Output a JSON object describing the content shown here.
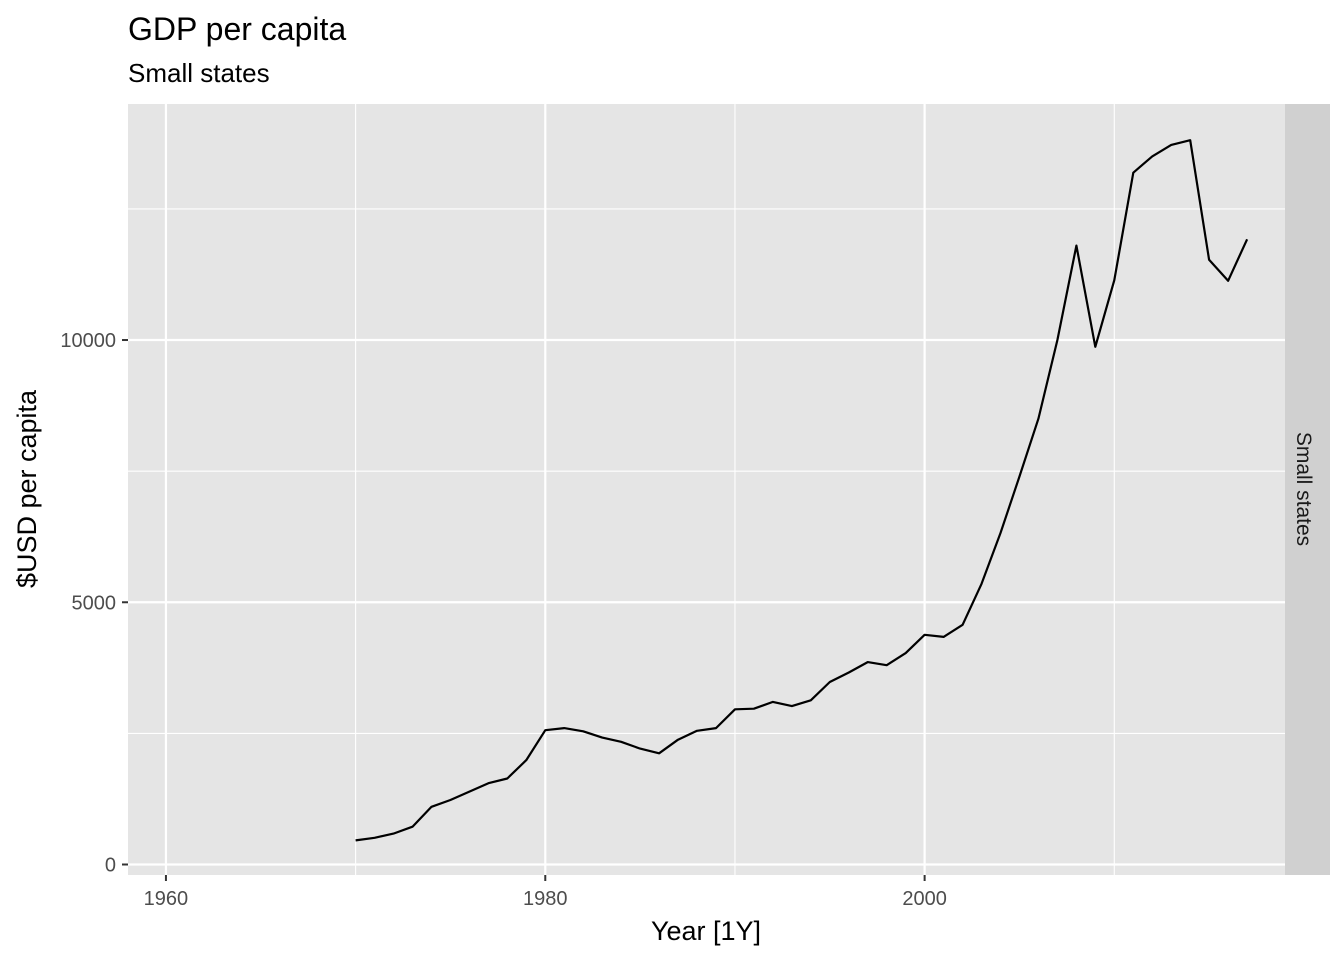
{
  "chart_data": {
    "type": "line",
    "title": "GDP per capita",
    "subtitle": "Small states",
    "xlabel": "Year [1Y]",
    "ylabel": "$USD per capita",
    "facet_label": "Small states",
    "xlim": [
      1958,
      2019
    ],
    "ylim": [
      -200,
      14500
    ],
    "x_ticks": [
      1960,
      1980,
      2000
    ],
    "x_tick_labels": [
      "1960",
      "1980",
      "2000"
    ],
    "x_minor_ticks": [
      1970,
      1990,
      2010
    ],
    "y_ticks": [
      0,
      5000,
      10000
    ],
    "y_tick_labels": [
      "0",
      "5000",
      "10000"
    ],
    "y_minor_ticks": [
      2500,
      7500,
      12500
    ],
    "grid": true,
    "colors": {
      "panel": "#e5e5e5",
      "grid": "#ffffff",
      "line": "#000000",
      "strip": "#d0d0d0"
    },
    "series": [
      {
        "x": [
          1970,
          1971,
          1972,
          1973,
          1974,
          1975,
          1976,
          1977,
          1978,
          1979,
          1980,
          1981,
          1982,
          1983,
          1984,
          1985,
          1986,
          1987,
          1988,
          1989,
          1990,
          1991,
          1992,
          1993,
          1994,
          1995,
          1996,
          1997,
          1998,
          1999,
          2000,
          2001,
          2002,
          2003,
          2004,
          2005,
          2006,
          2007,
          2008,
          2009,
          2010,
          2011,
          2012,
          2013,
          2014,
          2015,
          2016,
          2017
        ],
        "values": [
          460,
          510,
          590,
          720,
          1100,
          1230,
          1390,
          1550,
          1640,
          1990,
          2560,
          2600,
          2540,
          2420,
          2340,
          2210,
          2120,
          2380,
          2550,
          2600,
          2960,
          2970,
          3100,
          3020,
          3130,
          3480,
          3660,
          3860,
          3800,
          4030,
          4380,
          4340,
          4570,
          5350,
          6320,
          7400,
          8500,
          10000,
          11800,
          9870,
          11140,
          13190,
          13500,
          13720,
          13810,
          11530,
          11130,
          11920
        ]
      }
    ]
  }
}
